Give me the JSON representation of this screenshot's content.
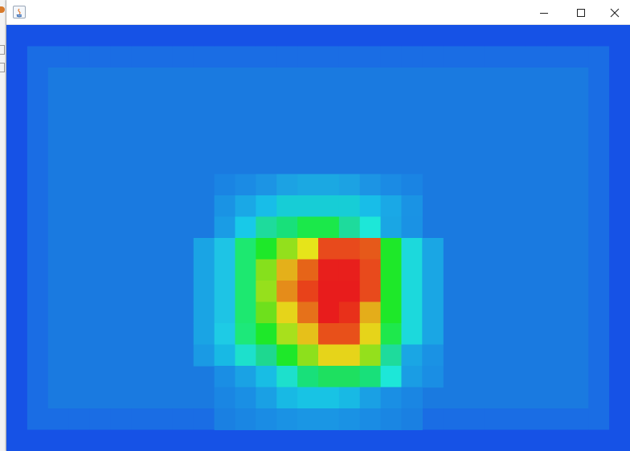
{
  "window": {
    "title": "",
    "controls": [
      {
        "name": "minimize",
        "icon": "minimize-icon"
      },
      {
        "name": "maximize",
        "icon": "maximize-icon"
      },
      {
        "name": "close",
        "icon": "close-icon"
      }
    ]
  },
  "heatmap": {
    "grid": {
      "cols": 30,
      "rows": 20
    },
    "colors": {
      "border": "#1652e6",
      "near_border": "#1a6de4",
      "background": "#1a7ae0",
      "halo": "#1c86e2"
    },
    "blob": {
      "col_start": 9,
      "row_start": 7,
      "rows": [
        [
          "#1a84e3",
          "#1b8be4",
          "#1c94e4",
          "#1ca2e3",
          "#1ba8e2",
          "#1ba8e2",
          "#1ca2e3",
          "#1c94e4",
          "#1b8be4",
          "#1a84e3"
        ],
        [
          "#1a93e4",
          "#1aa8e6",
          "#18bde8",
          "#17cdd6",
          "#17cdd6",
          "#17cdd6",
          "#17cdd6",
          "#18bde8",
          "#1aa8e6",
          "#1a93e4"
        ],
        [
          "#1a9ce5",
          "#18c9e8",
          "#1edb9c",
          "#18e07a",
          "#1be84a",
          "#1be84a",
          "#1edb9c",
          "#1de7d8",
          "#1aa6e4",
          "#1a92e4"
        ],
        [
          "#1aa4e4",
          "#1ec4e5",
          "#1de870",
          "#1ee829",
          "#93e01c",
          "#e6e41a",
          "#e84a1c",
          "#e84a1c",
          "#e6591a",
          "#1ee829",
          "#1cd9dc",
          "#1aa6e4"
        ],
        [
          "#1aa4e4",
          "#1ec4e5",
          "#1de870",
          "#86e01c",
          "#e4b01a",
          "#e66418",
          "#e81f1c",
          "#e81f1c",
          "#e84a1c",
          "#1ee829",
          "#1cd9dc",
          "#1aa6e4"
        ],
        [
          "#1aa4e4",
          "#1ec4e5",
          "#1de870",
          "#96e01c",
          "#e58c1a",
          "#e8421a",
          "#e81c1c",
          "#e81c1c",
          "#e84a1c",
          "#1ee829",
          "#1cd9dc",
          "#1aa6e4"
        ],
        [
          "#1aa4e4",
          "#1ec4e5",
          "#1de870",
          "#6ee01c",
          "#e6d41a",
          "#e6711a",
          "#e81c1c",
          "#e8301a",
          "#e4ad1a",
          "#1ee829",
          "#1cd9dc",
          "#1aa6e4"
        ],
        [
          "#1aa4e4",
          "#1ecbe5",
          "#1de87a",
          "#1ee829",
          "#a8e01c",
          "#e6c01a",
          "#e8501a",
          "#e8501a",
          "#e6d41a",
          "#1ee84c",
          "#1cd9dc",
          "#1aa6e4"
        ],
        [
          "#1a9ae4",
          "#18b9e4",
          "#1de0cc",
          "#1ed890",
          "#1ee829",
          "#8de01c",
          "#e6d41a",
          "#e6d41a",
          "#94e01c",
          "#1edb9c",
          "#1aa6e4",
          "#1a92e4"
        ],
        [
          "#1a8ee4",
          "#1aa2e4",
          "#18bde4",
          "#1de0cc",
          "#18e07a",
          "#1ee060",
          "#1ee060",
          "#18e07a",
          "#1de7d8",
          "#1a9de4",
          "#1a8ee4"
        ],
        [
          "#1a86e3",
          "#1a8fe4",
          "#1aa0e4",
          "#18b9e4",
          "#18c3e4",
          "#18c3e4",
          "#18b9e4",
          "#1aa0e4",
          "#1a8fe4",
          "#1a86e3"
        ],
        [
          "#1a80e2",
          "#1a86e3",
          "#1a8ce4",
          "#1a92e4",
          "#1a96e4",
          "#1a96e4",
          "#1a92e4",
          "#1a8ce4",
          "#1a86e3",
          "#1a80e2"
        ]
      ]
    }
  }
}
